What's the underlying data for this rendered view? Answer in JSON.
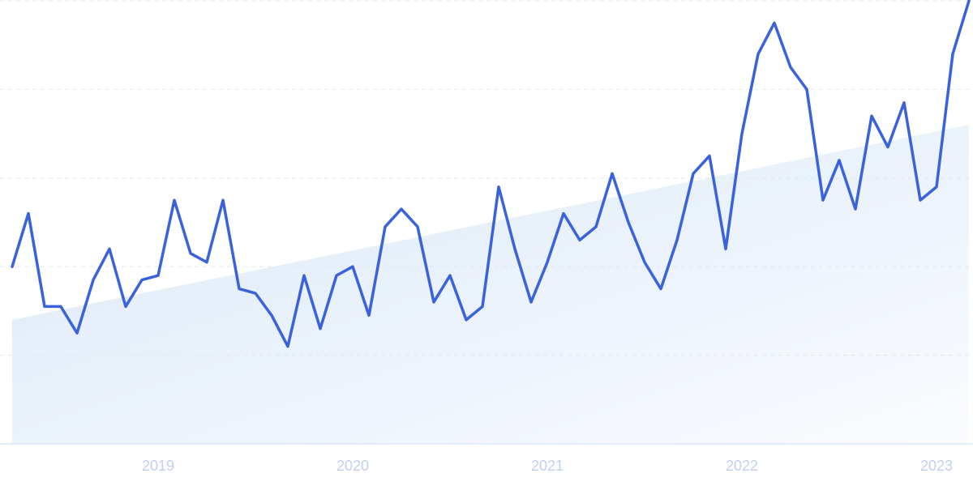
{
  "chart_data": {
    "type": "line",
    "categories": [
      null,
      null,
      null,
      null,
      null,
      null,
      null,
      null,
      null,
      "2019",
      null,
      null,
      null,
      null,
      null,
      null,
      null,
      null,
      null,
      null,
      null,
      "2020",
      null,
      null,
      null,
      null,
      null,
      null,
      null,
      null,
      null,
      null,
      null,
      "2021",
      null,
      null,
      null,
      null,
      null,
      null,
      null,
      null,
      null,
      null,
      null,
      "2022",
      null,
      null,
      null,
      null,
      null,
      null,
      null,
      null,
      null,
      null,
      null,
      "2023",
      null,
      null
    ],
    "values": [
      40,
      52,
      31,
      31,
      25,
      37,
      44,
      31,
      37,
      38,
      55,
      43,
      41,
      55,
      35,
      34,
      29,
      22,
      38,
      26,
      38,
      40,
      29,
      49,
      53,
      49,
      32,
      38,
      28,
      31,
      58,
      44,
      32,
      41,
      52,
      46,
      49,
      61,
      50,
      41,
      35,
      46,
      61,
      65,
      44,
      70,
      88,
      95,
      85,
      80,
      55,
      64,
      53,
      74,
      67,
      77,
      55,
      58,
      88,
      100
    ],
    "color": "#3a62dc",
    "trend": [
      28,
      72
    ],
    "trend_color": "#dbe8f8",
    "ylim": [
      0,
      100
    ],
    "yticks": [
      0,
      20,
      40,
      60,
      80,
      100
    ],
    "grid": true
  }
}
